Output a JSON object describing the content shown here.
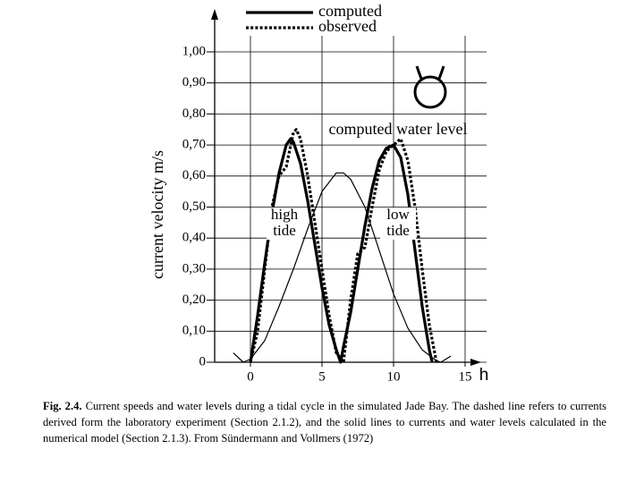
{
  "chart_data": {
    "type": "line",
    "xlabel": "h",
    "ylabel": "current velocity m/s",
    "xlim": [
      -2.5,
      16.5
    ],
    "ylim": [
      0,
      1.0
    ],
    "xticks": [
      0,
      5,
      10,
      15
    ],
    "yticks": [
      0,
      {
        "value": 0.1,
        "label": "0,10"
      },
      {
        "value": 0.2,
        "label": "0,20"
      },
      {
        "value": 0.3,
        "label": "0,30"
      },
      {
        "value": 0.4,
        "label": "0,40"
      },
      {
        "value": 0.5,
        "label": "0,50"
      },
      {
        "value": 0.6,
        "label": "0,60"
      },
      {
        "value": 0.7,
        "label": "0,70"
      },
      {
        "value": 0.8,
        "label": "0,80"
      },
      {
        "value": 0.9,
        "label": "0,90"
      },
      {
        "value": 1.0,
        "label": "1,00"
      }
    ],
    "grid": true,
    "legend": "top",
    "series": [
      {
        "name": "computed",
        "color": "#000000",
        "line_style": "solid",
        "line_width": 3.2,
        "x": [
          0,
          0.5,
          1,
          1.5,
          2,
          2.5,
          2.8,
          3,
          3.5,
          4,
          4.5,
          5,
          5.5,
          6,
          6.3,
          6.5,
          7,
          7.5,
          8,
          8.5,
          9,
          9.5,
          10,
          10.5,
          11,
          11.5,
          12,
          12.5,
          12.7
        ],
        "values": [
          0,
          0.15,
          0.32,
          0.48,
          0.61,
          0.7,
          0.72,
          0.71,
          0.64,
          0.52,
          0.38,
          0.24,
          0.12,
          0.04,
          0,
          0.05,
          0.16,
          0.3,
          0.44,
          0.56,
          0.65,
          0.69,
          0.7,
          0.66,
          0.54,
          0.36,
          0.18,
          0.04,
          0
        ]
      },
      {
        "name": "observed",
        "color": "#000000",
        "line_style": "dotted",
        "line_width": 3.2,
        "x": [
          0,
          0.5,
          1,
          1.5,
          2,
          2.5,
          3,
          3.2,
          3.5,
          4,
          4.5,
          5,
          5.5,
          6,
          6.5,
          7,
          7.5,
          8,
          8.5,
          9,
          9.5,
          10,
          10.5,
          11,
          11.5,
          12,
          12.5,
          13
        ],
        "values": [
          0,
          0.1,
          0.3,
          0.5,
          0.6,
          0.63,
          0.74,
          0.75,
          0.72,
          0.6,
          0.45,
          0.3,
          0.15,
          0.03,
          0,
          0.2,
          0.35,
          0.37,
          0.5,
          0.62,
          0.68,
          0.7,
          0.72,
          0.65,
          0.5,
          0.3,
          0.12,
          0
        ]
      },
      {
        "name": "computed water level",
        "color": "#000000",
        "line_style": "solid",
        "line_width": 1.2,
        "in_legend": false,
        "x": [
          -1.2,
          -0.5,
          0,
          1,
          2,
          3,
          4,
          5,
          6,
          6.5,
          7,
          8,
          9,
          10,
          11,
          12,
          13,
          13.3,
          14
        ],
        "values": [
          0.03,
          0,
          0.01,
          0.07,
          0.18,
          0.3,
          0.43,
          0.55,
          0.61,
          0.61,
          0.59,
          0.5,
          0.36,
          0.22,
          0.11,
          0.04,
          0.005,
          0,
          0.02
        ]
      }
    ],
    "annotations": [
      [
        "high",
        "tide"
      ],
      [
        "low",
        "tide"
      ]
    ]
  },
  "caption": {
    "label": "Fig. 2.4.",
    "text": "Current speeds and water levels during a tidal cycle in the simulated Jade Bay. The dashed line refers to currents derived form the laboratory experiment (Section 2.1.2), and the solid lines to currents and water levels calculated in the numerical model (Section 2.1.3). From Sündermann and Vollmers (1972)"
  }
}
